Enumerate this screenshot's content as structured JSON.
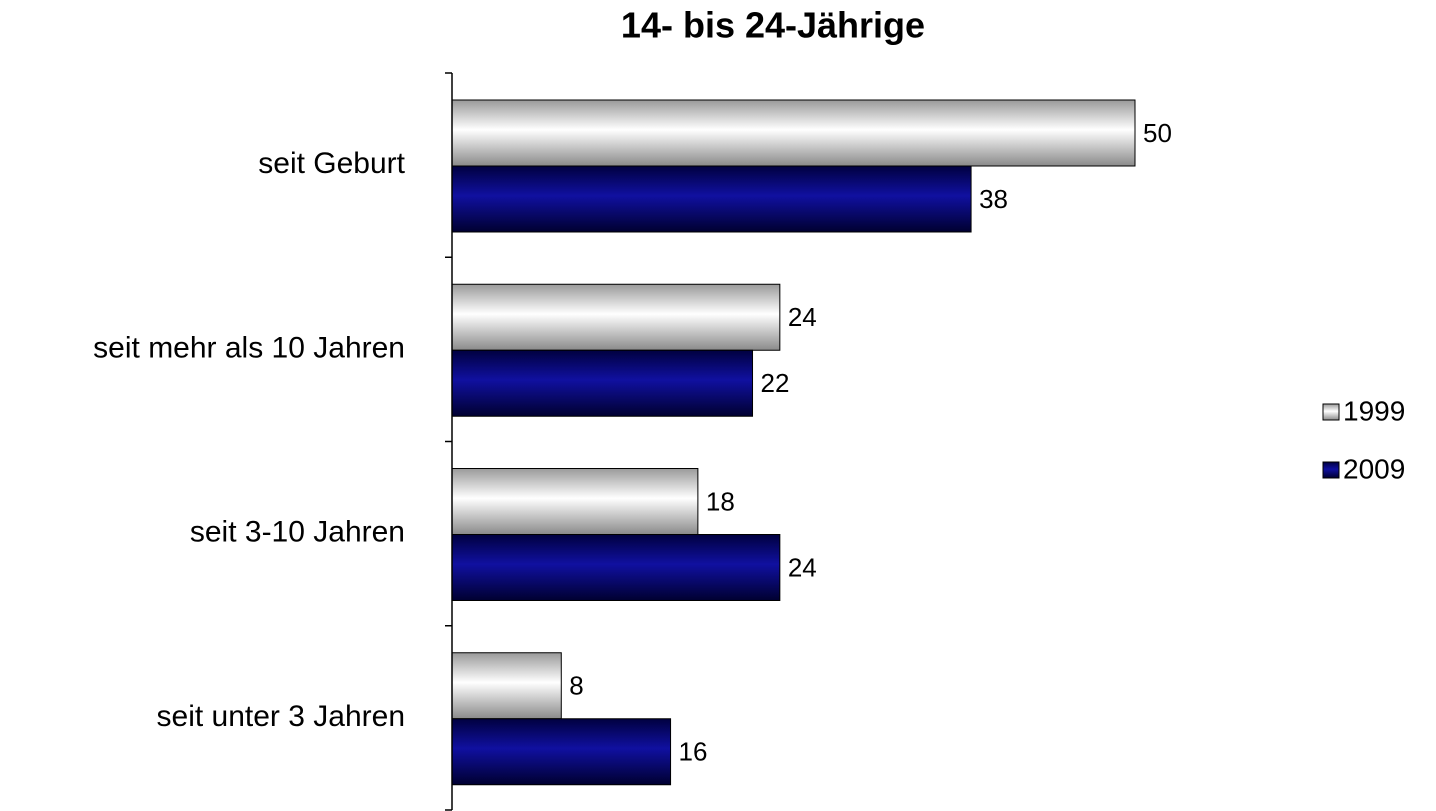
{
  "chart_data": {
    "type": "barh",
    "title": "14- bis 24-Jährige",
    "categories": [
      "seit Geburt",
      "seit mehr als 10 Jahren",
      "seit 3-10 Jahren",
      "seit unter 3 Jahren"
    ],
    "series": [
      {
        "name": "1999",
        "color": "#d0d0d0",
        "values": [
          50,
          24,
          18,
          8
        ]
      },
      {
        "name": "2009",
        "color": "#000080",
        "values": [
          38,
          22,
          24,
          16
        ]
      }
    ],
    "xlim": [
      0,
      50
    ],
    "legend": "right"
  }
}
